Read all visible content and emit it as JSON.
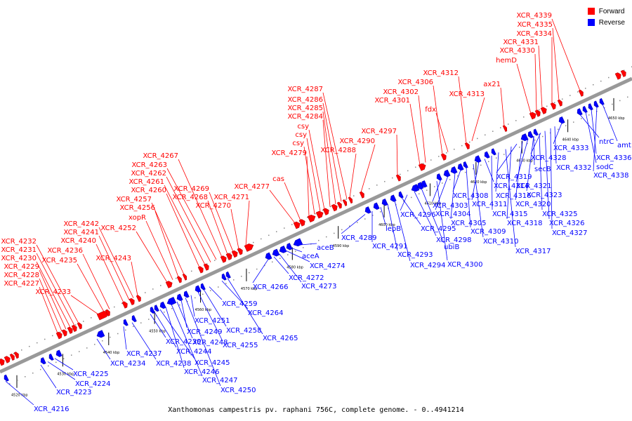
{
  "colors": {
    "forward": "#ff0000",
    "reverse": "#0000ff",
    "backbone": "#999999",
    "tick": "#000000"
  },
  "legend": {
    "forward": "Forward",
    "reverse": "Reverse"
  },
  "caption": "Xanthomonas campestris pv. raphani 756C, complete genome. - 0..4941214",
  "genes": {
    "forward": [
      "XCR_4227",
      "XCR_4228",
      "XCR_4229",
      "XCR_4230",
      "XCR_4231",
      "XCR_4232",
      "XCR_4233",
      "XCR_4235",
      "XCR_4236",
      "XCR_4240",
      "XCR_4241",
      "XCR_4242",
      "XCR_4243",
      "XCR_4252",
      "xopR",
      "XCR_4256",
      "XCR_4257",
      "XCR_4260",
      "XCR_4261",
      "XCR_4262",
      "XCR_4263",
      "XCR_4267",
      "XCR_4268",
      "XCR_4269",
      "XCR_4270",
      "XCR_4271",
      "XCR_4277",
      "cas",
      "XCR_4279",
      "csy",
      "csy",
      "csy",
      "XCR_4284",
      "XCR_4285",
      "XCR_4286",
      "XCR_4287",
      "XCR_4288",
      "XCR_4290",
      "XCR_4297",
      "XCR_4301",
      "XCR_4302",
      "XCR_4306",
      "fdx",
      "XCR_4312",
      "XCR_4313",
      "ax21",
      "hemD",
      "XCR_4330",
      "XCR_4331",
      "XCR_4334",
      "XCR_4335",
      "XCR_4339"
    ],
    "reverse": [
      "XCR_4216",
      "XCR_4223",
      "XCR_4224",
      "XCR_4225",
      "XCR_4234",
      "XCR_4237",
      "XCR_4238",
      "XCR_4239",
      "XCR_4244",
      "XCR_4245",
      "XCR_4246",
      "XCR_4247",
      "XCR_4248",
      "XCR_4249",
      "XCR_4250",
      "XCR_4251",
      "XCR_4255",
      "XCR_4258",
      "XCR_4259",
      "XCR_4264",
      "XCR_4265",
      "XCR_4266",
      "XCR_4272",
      "XCR_4273",
      "XCR_4274",
      "aceA",
      "aceB",
      "XCR_4289",
      "XCR_4291",
      "lepB",
      "XCR_4293",
      "XCR_4294",
      "XCR_4295",
      "XCR_4296",
      "XCR_4298",
      "ubiB",
      "XCR_4300",
      "XCR_4303",
      "XCR_4304",
      "XCR_4305",
      "XCR_4308",
      "XCR_4309",
      "XCR_4310",
      "XCR_4311",
      "XCR_4314",
      "XCR_4315",
      "XCR_4316",
      "XCR_4317",
      "XCR_4318",
      "XCR_4319",
      "XCR_4320",
      "XCR_4321",
      "XCR_4323",
      "XCR_4325",
      "XCR_4326",
      "XCR_4327",
      "secB",
      "XCR_4328",
      "XCR_4332",
      "XCR_4333",
      "ntrC",
      "sodC",
      "XCR_4336",
      "XCR_4338",
      "amt"
    ]
  },
  "scale_labels": [
    "4520 kbp",
    "4530 kbp",
    "4540 kbp",
    "4550 kbp",
    "4560 kbp",
    "4570 kbp",
    "4580 kbp",
    "4590 kbp",
    "4600 kbp",
    "4610 kbp",
    "4620 kbp",
    "4630 kbp",
    "4640 kbp",
    "4650 kbp"
  ]
}
